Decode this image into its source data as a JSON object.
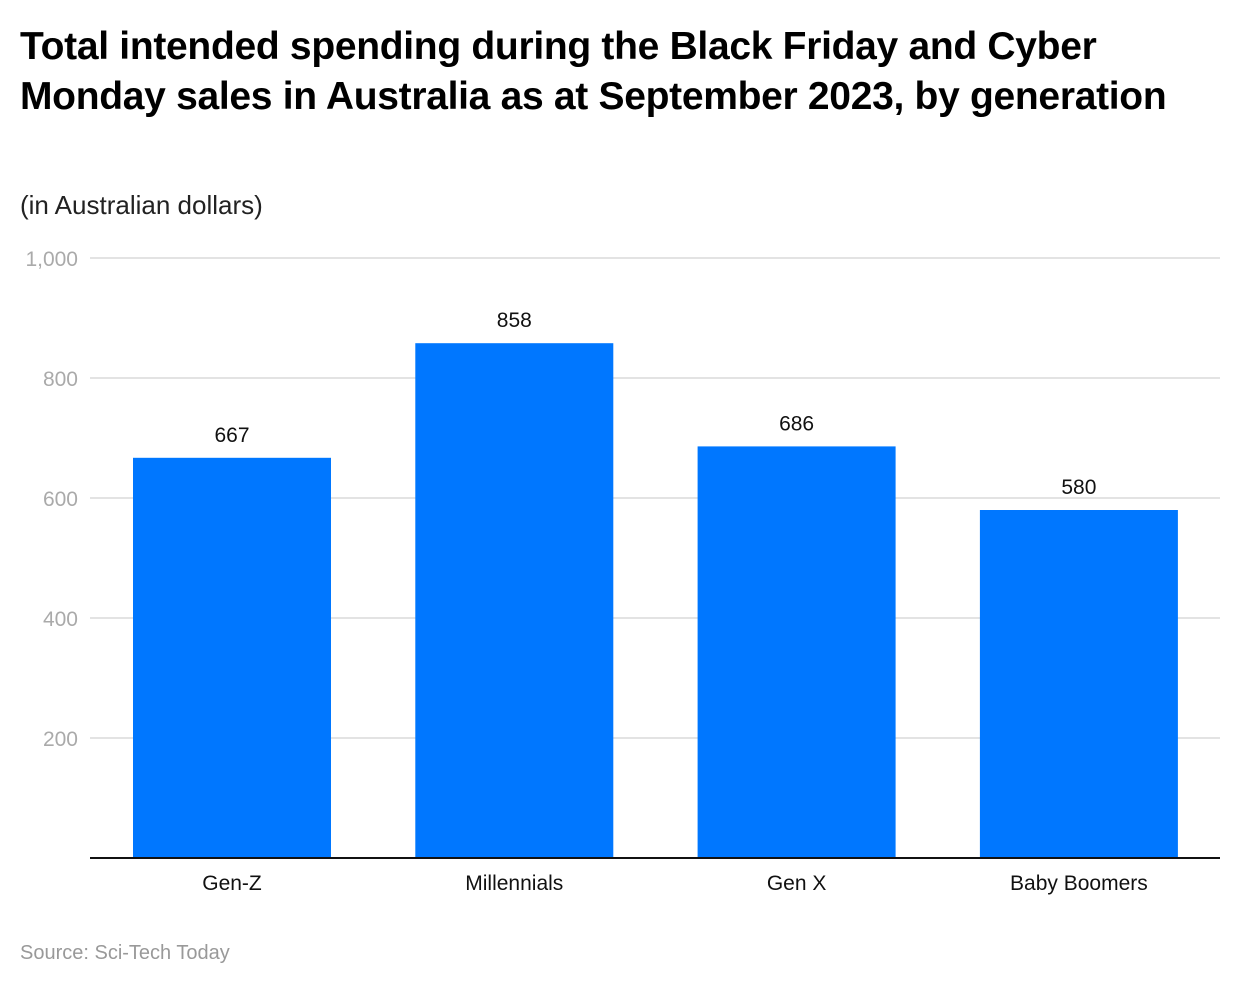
{
  "chart_data": {
    "type": "bar",
    "title": "Total intended spending during the Black Friday and Cyber Monday sales in Australia as at September 2023, by generation",
    "subtitle": "(in Australian dollars)",
    "categories": [
      "Gen-Z",
      "Millennials",
      "Gen X",
      "Baby Boomers"
    ],
    "values": [
      667,
      858,
      686,
      580
    ],
    "data_labels": [
      "667",
      "858",
      "686",
      "580"
    ],
    "xlabel": "",
    "ylabel": "",
    "ylim": [
      0,
      1000
    ],
    "yticks": [
      200,
      400,
      600,
      800,
      1000
    ],
    "ytick_labels": [
      "200",
      "400",
      "600",
      "800",
      "1,000"
    ],
    "grid": true,
    "bar_color": "#0077FF",
    "source": "Source: Sci-Tech Today"
  }
}
